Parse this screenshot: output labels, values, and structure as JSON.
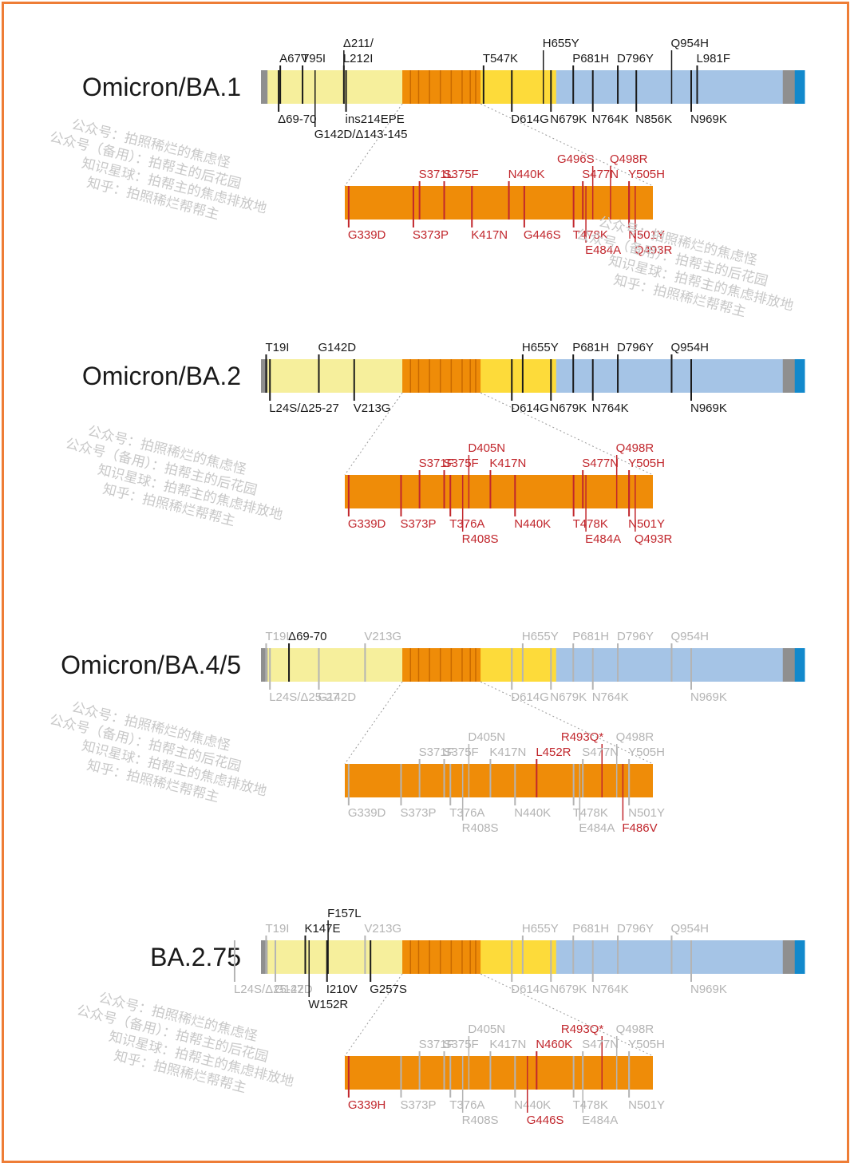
{
  "colors": {
    "ntd": "#f6ef9c",
    "rbd": "#ef8c08",
    "sd": "#fddb3a",
    "s2": "#a5c4e6",
    "tm": "#8f8f8f",
    "ct": "#1289cc",
    "black": "#1a1a1a",
    "red": "#c1272d",
    "gray": "#b4b4b4",
    "frame": "#ee7d36"
  },
  "watermark": {
    "lines": [
      "公众号：拍照稀烂的焦虑怪",
      "公众号（备用）：拍帮主的后花园",
      "知识星球：拍帮主的焦虑排放地",
      "知乎：拍照稀烂帮帮主"
    ]
  },
  "panels": [
    {
      "title": "Omicron/BA.1",
      "full": {
        "above": [
          {
            "text": "A67V",
            "pos": 0.034,
            "c": "k"
          },
          {
            "text": "T95I",
            "pos": 0.075,
            "c": "k"
          },
          {
            "text": "Δ211/",
            "pos": 0.151,
            "c": "k",
            "row": 2
          },
          {
            "text": "L212I",
            "pos": 0.151,
            "c": "k"
          },
          {
            "text": "T547K",
            "pos": 0.408,
            "c": "k"
          },
          {
            "text": "H655Y",
            "pos": 0.518,
            "c": "k",
            "row": 2
          },
          {
            "text": "P681H",
            "pos": 0.573,
            "c": "k"
          },
          {
            "text": "D796Y",
            "pos": 0.655,
            "c": "k"
          },
          {
            "text": "Q954H",
            "pos": 0.754,
            "c": "k",
            "row": 2
          },
          {
            "text": "L981F",
            "pos": 0.801,
            "c": "k"
          }
        ],
        "below": [
          {
            "text": "Δ69-70",
            "pos": 0.031,
            "c": "k"
          },
          {
            "text": "ins214EPE",
            "pos": 0.155,
            "c": "k"
          },
          {
            "text": "G142D/Δ143-145",
            "pos": 0.098,
            "c": "k",
            "row": 2
          },
          {
            "text": "D614G",
            "pos": 0.46,
            "c": "k"
          },
          {
            "text": "N679K",
            "pos": 0.532,
            "c": "k"
          },
          {
            "text": "N764K",
            "pos": 0.609,
            "c": "k"
          },
          {
            "text": "N856K",
            "pos": 0.689,
            "c": "k"
          },
          {
            "text": "N969K",
            "pos": 0.79,
            "c": "k"
          }
        ]
      },
      "rbd": {
        "above": [
          {
            "text": "G496S",
            "pos": 0.81,
            "c": "r",
            "row": 2,
            "align": "right"
          },
          {
            "text": "Q498R",
            "pos": 0.86,
            "c": "r",
            "row": 2
          },
          {
            "text": "S371L",
            "pos": 0.24,
            "c": "r"
          },
          {
            "text": "S375F",
            "pos": 0.32,
            "c": "r"
          },
          {
            "text": "N440K",
            "pos": 0.53,
            "c": "r"
          },
          {
            "text": "S477N",
            "pos": 0.77,
            "c": "r"
          },
          {
            "text": "Y505H",
            "pos": 0.92,
            "c": "r"
          }
        ],
        "below": [
          {
            "text": "G339D",
            "pos": 0.01,
            "c": "r"
          },
          {
            "text": "S373P",
            "pos": 0.22,
            "c": "r"
          },
          {
            "text": "K417N",
            "pos": 0.41,
            "c": "r"
          },
          {
            "text": "G446S",
            "pos": 0.58,
            "c": "r"
          },
          {
            "text": "T478K",
            "pos": 0.74,
            "c": "r"
          },
          {
            "text": "N501Y",
            "pos": 0.92,
            "c": "r"
          },
          {
            "text": "E484A",
            "pos": 0.78,
            "c": "r",
            "row": 2
          },
          {
            "text": "Q493R",
            "pos": 0.94,
            "c": "r",
            "row": 2
          }
        ]
      }
    },
    {
      "title": "Omicron/BA.2",
      "full": {
        "above": [
          {
            "text": "T19I",
            "pos": 0.008,
            "c": "k"
          },
          {
            "text": "G142D",
            "pos": 0.105,
            "c": "k"
          },
          {
            "text": "H655Y",
            "pos": 0.48,
            "c": "k"
          },
          {
            "text": "P681H",
            "pos": 0.573,
            "c": "k"
          },
          {
            "text": "D796Y",
            "pos": 0.655,
            "c": "k"
          },
          {
            "text": "Q954H",
            "pos": 0.754,
            "c": "k"
          }
        ],
        "below": [
          {
            "text": "L24S/Δ25-27",
            "pos": 0.015,
            "c": "k"
          },
          {
            "text": "V213G",
            "pos": 0.17,
            "c": "k"
          },
          {
            "text": "D614G",
            "pos": 0.46,
            "c": "k"
          },
          {
            "text": "N679K",
            "pos": 0.532,
            "c": "k"
          },
          {
            "text": "N764K",
            "pos": 0.609,
            "c": "k"
          },
          {
            "text": "N969K",
            "pos": 0.79,
            "c": "k"
          }
        ]
      },
      "rbd": {
        "above": [
          {
            "text": "D405N",
            "pos": 0.4,
            "c": "r",
            "row": 2
          },
          {
            "text": "Q498R",
            "pos": 0.88,
            "c": "r",
            "row": 2
          },
          {
            "text": "S371F",
            "pos": 0.24,
            "c": "r"
          },
          {
            "text": "S375F",
            "pos": 0.32,
            "c": "r"
          },
          {
            "text": "K417N",
            "pos": 0.47,
            "c": "r"
          },
          {
            "text": "S477N",
            "pos": 0.77,
            "c": "r"
          },
          {
            "text": "Y505H",
            "pos": 0.92,
            "c": "r"
          }
        ],
        "below": [
          {
            "text": "G339D",
            "pos": 0.01,
            "c": "r"
          },
          {
            "text": "S373P",
            "pos": 0.18,
            "c": "r"
          },
          {
            "text": "T376A",
            "pos": 0.34,
            "c": "r"
          },
          {
            "text": "N440K",
            "pos": 0.55,
            "c": "r"
          },
          {
            "text": "T478K",
            "pos": 0.74,
            "c": "r"
          },
          {
            "text": "N501Y",
            "pos": 0.92,
            "c": "r"
          },
          {
            "text": "R408S",
            "pos": 0.38,
            "c": "r",
            "row": 2
          },
          {
            "text": "E484A",
            "pos": 0.78,
            "c": "r",
            "row": 2
          },
          {
            "text": "Q493R",
            "pos": 0.94,
            "c": "r",
            "row": 2
          }
        ]
      }
    },
    {
      "title": "Omicron/BA.4/5",
      "full": {
        "above": [
          {
            "text": "T19I",
            "pos": 0.008,
            "c": "g"
          },
          {
            "text": "Δ69-70",
            "pos": 0.05,
            "c": "k"
          },
          {
            "text": "V213G",
            "pos": 0.19,
            "c": "g"
          },
          {
            "text": "H655Y",
            "pos": 0.48,
            "c": "g"
          },
          {
            "text": "P681H",
            "pos": 0.573,
            "c": "g"
          },
          {
            "text": "D796Y",
            "pos": 0.655,
            "c": "g"
          },
          {
            "text": "Q954H",
            "pos": 0.754,
            "c": "g"
          }
        ],
        "below": [
          {
            "text": "L24S/Δ25-27",
            "pos": 0.015,
            "c": "g"
          },
          {
            "text": "G142D",
            "pos": 0.105,
            "c": "g"
          },
          {
            "text": "D614G",
            "pos": 0.46,
            "c": "g"
          },
          {
            "text": "N679K",
            "pos": 0.532,
            "c": "g"
          },
          {
            "text": "N764K",
            "pos": 0.609,
            "c": "g"
          },
          {
            "text": "N969K",
            "pos": 0.79,
            "c": "g"
          }
        ]
      },
      "rbd": {
        "above": [
          {
            "text": "D405N",
            "pos": 0.4,
            "c": "g",
            "row": 2
          },
          {
            "text": "R493Q*",
            "pos": 0.84,
            "c": "r",
            "row": 2,
            "align": "right"
          },
          {
            "text": "Q498R",
            "pos": 0.88,
            "c": "g",
            "row": 2
          },
          {
            "text": "S371F",
            "pos": 0.24,
            "c": "g"
          },
          {
            "text": "S375F",
            "pos": 0.32,
            "c": "g"
          },
          {
            "text": "K417N",
            "pos": 0.47,
            "c": "g"
          },
          {
            "text": "L452R",
            "pos": 0.62,
            "c": "r"
          },
          {
            "text": "S477N",
            "pos": 0.77,
            "c": "g"
          },
          {
            "text": "Y505H",
            "pos": 0.92,
            "c": "g"
          }
        ],
        "below": [
          {
            "text": "G339D",
            "pos": 0.01,
            "c": "g"
          },
          {
            "text": "S373P",
            "pos": 0.18,
            "c": "g"
          },
          {
            "text": "T376A",
            "pos": 0.34,
            "c": "g"
          },
          {
            "text": "N440K",
            "pos": 0.55,
            "c": "g"
          },
          {
            "text": "T478K",
            "pos": 0.74,
            "c": "g"
          },
          {
            "text": "N501Y",
            "pos": 0.92,
            "c": "g"
          },
          {
            "text": "R408S",
            "pos": 0.38,
            "c": "g",
            "row": 2
          },
          {
            "text": "E484A",
            "pos": 0.76,
            "c": "g",
            "row": 2
          },
          {
            "text": "F486V",
            "pos": 0.9,
            "c": "r",
            "row": 2
          }
        ]
      }
    },
    {
      "title": "BA.2.75",
      "full": {
        "above": [
          {
            "text": "F157L",
            "pos": 0.122,
            "c": "k",
            "row": 2
          },
          {
            "text": "T19I",
            "pos": 0.008,
            "c": "g"
          },
          {
            "text": "K147E",
            "pos": 0.08,
            "c": "k"
          },
          {
            "text": "V213G",
            "pos": 0.19,
            "c": "g"
          },
          {
            "text": "H655Y",
            "pos": 0.48,
            "c": "g"
          },
          {
            "text": "P681H",
            "pos": 0.573,
            "c": "g"
          },
          {
            "text": "D796Y",
            "pos": 0.655,
            "c": "g"
          },
          {
            "text": "Q954H",
            "pos": 0.754,
            "c": "g"
          }
        ],
        "below": [
          {
            "text": "L24S/Δ25-27",
            "pos": -0.05,
            "c": "g"
          },
          {
            "text": "G142D",
            "pos": 0.025,
            "c": "g"
          },
          {
            "text": "I210V",
            "pos": 0.12,
            "c": "k"
          },
          {
            "text": "G257S",
            "pos": 0.2,
            "c": "k"
          },
          {
            "text": "W152R",
            "pos": 0.087,
            "c": "k",
            "row": 2
          },
          {
            "text": "D614G",
            "pos": 0.46,
            "c": "g"
          },
          {
            "text": "N679K",
            "pos": 0.532,
            "c": "g"
          },
          {
            "text": "N764K",
            "pos": 0.609,
            "c": "g"
          },
          {
            "text": "N969K",
            "pos": 0.79,
            "c": "g"
          }
        ]
      },
      "rbd": {
        "above": [
          {
            "text": "D405N",
            "pos": 0.4,
            "c": "g",
            "row": 2
          },
          {
            "text": "R493Q*",
            "pos": 0.84,
            "c": "r",
            "row": 2,
            "align": "right"
          },
          {
            "text": "Q498R",
            "pos": 0.88,
            "c": "g",
            "row": 2
          },
          {
            "text": "S371F",
            "pos": 0.24,
            "c": "g"
          },
          {
            "text": "S375F",
            "pos": 0.32,
            "c": "g"
          },
          {
            "text": "K417N",
            "pos": 0.47,
            "c": "g"
          },
          {
            "text": "N460K",
            "pos": 0.62,
            "c": "r"
          },
          {
            "text": "S477N",
            "pos": 0.77,
            "c": "g"
          },
          {
            "text": "Y505H",
            "pos": 0.92,
            "c": "g"
          }
        ],
        "below": [
          {
            "text": "G339H",
            "pos": 0.01,
            "c": "r"
          },
          {
            "text": "S373P",
            "pos": 0.18,
            "c": "g"
          },
          {
            "text": "T376A",
            "pos": 0.34,
            "c": "g"
          },
          {
            "text": "N440K",
            "pos": 0.55,
            "c": "g"
          },
          {
            "text": "T478K",
            "pos": 0.74,
            "c": "g"
          },
          {
            "text": "N501Y",
            "pos": 0.92,
            "c": "g"
          },
          {
            "text": "R408S",
            "pos": 0.38,
            "c": "g",
            "row": 2
          },
          {
            "text": "G446S",
            "pos": 0.59,
            "c": "r",
            "row": 2
          },
          {
            "text": "E484A",
            "pos": 0.77,
            "c": "g",
            "row": 2
          }
        ]
      }
    }
  ]
}
